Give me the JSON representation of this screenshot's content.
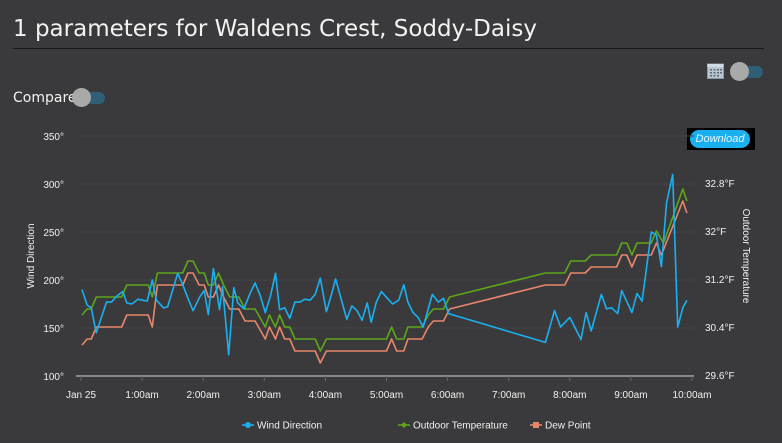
{
  "header": {
    "title": "1 parameters for Waldens Crest, Soddy-Daisy"
  },
  "controls": {
    "compare_label": "Compare",
    "compare_on": false,
    "date_toggle_on": false,
    "calendar_icon": "calendar-icon",
    "download_label": "Download"
  },
  "colors": {
    "wind": "#1ab0f0",
    "temp": "#5ea51a",
    "dew": "#e8866a",
    "background": "#3a3a3c"
  },
  "chart_data": {
    "type": "line",
    "title": "",
    "xlabel": "",
    "ylabel_left": "Wind Direction",
    "ylabel_right": "Outdoor Temperature",
    "x_ticks": [
      "Jan 25",
      "1:00am",
      "2:00am",
      "3:00am",
      "4:00am",
      "5:00am",
      "6:00am",
      "7:00am",
      "8:00am",
      "9:00am",
      "10:00am"
    ],
    "xlim": [
      "0:00",
      "10:00"
    ],
    "y_left_ticks": [
      "100°",
      "150°",
      "200°",
      "250°",
      "300°",
      "350°"
    ],
    "ylim_left": [
      100,
      350
    ],
    "y_right_ticks": [
      "29.6°F",
      "30.4°F",
      "31.2°F",
      "32°F",
      "32.8°F"
    ],
    "ylim_right": [
      29.6,
      32.8
    ],
    "grid": true,
    "legend": "bottom",
    "series": [
      {
        "name": "Wind Direction",
        "axis": "left",
        "points": [
          [
            "0:01",
            190
          ],
          [
            "0:06",
            174
          ],
          [
            "0:10",
            171
          ],
          [
            "0:15",
            145
          ],
          [
            "0:25",
            177
          ],
          [
            "0:30",
            177
          ],
          [
            "0:35",
            183
          ],
          [
            "0:41",
            188
          ],
          [
            "0:45",
            176
          ],
          [
            "0:50",
            175
          ],
          [
            "0:56",
            180
          ],
          [
            "1:05",
            178
          ],
          [
            "1:10",
            200
          ],
          [
            "1:14",
            179
          ],
          [
            "1:21",
            171
          ],
          [
            "1:25",
            172
          ],
          [
            "1:35",
            207
          ],
          [
            "1:40",
            195
          ],
          [
            "1:45",
            181
          ],
          [
            "1:50",
            168
          ],
          [
            "1:57",
            183
          ],
          [
            "2:01",
            189
          ],
          [
            "2:05",
            164
          ],
          [
            "2:10",
            212
          ],
          [
            "2:16",
            169
          ],
          [
            "2:19",
            193
          ],
          [
            "2:25",
            122
          ],
          [
            "2:30",
            192
          ],
          [
            "2:34",
            176
          ],
          [
            "2:40",
            170
          ],
          [
            "2:46",
            186
          ],
          [
            "2:51",
            197
          ],
          [
            "2:56",
            184
          ],
          [
            "3:01",
            166
          ],
          [
            "3:06",
            183
          ],
          [
            "3:11",
            207
          ],
          [
            "3:15",
            169
          ],
          [
            "3:20",
            171
          ],
          [
            "3:25",
            160
          ],
          [
            "3:30",
            177
          ],
          [
            "3:35",
            177
          ],
          [
            "3:40",
            180
          ],
          [
            "3:45",
            179
          ],
          [
            "3:50",
            185
          ],
          [
            "3:55",
            202
          ],
          [
            "4:01",
            167
          ],
          [
            "4:06",
            185
          ],
          [
            "4:10",
            201
          ],
          [
            "4:21",
            159
          ],
          [
            "4:26",
            173
          ],
          [
            "4:31",
            168
          ],
          [
            "4:36",
            158
          ],
          [
            "4:41",
            176
          ],
          [
            "4:45",
            156
          ],
          [
            "4:50",
            177
          ],
          [
            "4:55",
            188
          ],
          [
            "5:00",
            182
          ],
          [
            "5:06",
            175
          ],
          [
            "5:12",
            179
          ],
          [
            "5:17",
            195
          ],
          [
            "5:21",
            177
          ],
          [
            "5:26",
            166
          ],
          [
            "5:31",
            161
          ],
          [
            "5:36",
            151
          ],
          [
            "5:45",
            185
          ],
          [
            "5:51",
            177
          ],
          [
            "5:56",
            181
          ],
          [
            "6:01",
            165
          ],
          [
            "7:36",
            135
          ],
          [
            "7:45",
            168
          ],
          [
            "7:51",
            151
          ],
          [
            "8:00",
            161
          ],
          [
            "8:11",
            138
          ],
          [
            "8:16",
            166
          ],
          [
            "8:21",
            147
          ],
          [
            "8:31",
            185
          ],
          [
            "8:36",
            170
          ],
          [
            "8:41",
            171
          ],
          [
            "8:47",
            165
          ],
          [
            "8:51",
            189
          ],
          [
            "9:01",
            166
          ],
          [
            "9:06",
            186
          ],
          [
            "9:11",
            178
          ],
          [
            "9:20",
            250
          ],
          [
            "9:25",
            247
          ],
          [
            "9:30",
            214
          ],
          [
            "9:35",
            280
          ],
          [
            "9:41",
            310
          ],
          [
            "9:46",
            151
          ],
          [
            "9:51",
            171
          ],
          [
            "9:55",
            179
          ]
        ]
      },
      {
        "name": "Outdoor Temperature",
        "axis": "right",
        "points": [
          [
            "0:01",
            30.6
          ],
          [
            "0:06",
            30.7
          ],
          [
            "0:10",
            30.7
          ],
          [
            "0:15",
            30.9
          ],
          [
            "0:40",
            30.9
          ],
          [
            "0:45",
            31.1
          ],
          [
            "1:06",
            31.1
          ],
          [
            "1:10",
            30.9
          ],
          [
            "1:15",
            31.3
          ],
          [
            "1:40",
            31.3
          ],
          [
            "1:45",
            31.5
          ],
          [
            "1:50",
            31.5
          ],
          [
            "1:56",
            31.3
          ],
          [
            "2:01",
            31.3
          ],
          [
            "2:05",
            31.1
          ],
          [
            "2:10",
            31.1
          ],
          [
            "2:15",
            31.3
          ],
          [
            "2:20",
            31.1
          ],
          [
            "2:26",
            30.9
          ],
          [
            "2:35",
            30.9
          ],
          [
            "2:41",
            30.7
          ],
          [
            "2:51",
            30.7
          ],
          [
            "3:01",
            30.4
          ],
          [
            "3:05",
            30.6
          ],
          [
            "3:11",
            30.4
          ],
          [
            "3:15",
            30.6
          ],
          [
            "3:20",
            30.4
          ],
          [
            "3:25",
            30.4
          ],
          [
            "3:30",
            30.2
          ],
          [
            "3:50",
            30.2
          ],
          [
            "3:55",
            30.0
          ],
          [
            "4:01",
            30.2
          ],
          [
            "5:00",
            30.2
          ],
          [
            "5:05",
            30.4
          ],
          [
            "5:10",
            30.2
          ],
          [
            "5:17",
            30.2
          ],
          [
            "5:21",
            30.4
          ],
          [
            "5:35",
            30.4
          ],
          [
            "5:41",
            30.6
          ],
          [
            "5:46",
            30.7
          ],
          [
            "5:56",
            30.7
          ],
          [
            "6:02",
            30.9
          ],
          [
            "7:36",
            31.3
          ],
          [
            "7:55",
            31.3
          ],
          [
            "8:01",
            31.5
          ],
          [
            "8:15",
            31.5
          ],
          [
            "8:21",
            31.6
          ],
          [
            "8:46",
            31.6
          ],
          [
            "8:51",
            31.8
          ],
          [
            "8:56",
            31.8
          ],
          [
            "9:01",
            31.6
          ],
          [
            "9:06",
            31.8
          ],
          [
            "9:20",
            31.8
          ],
          [
            "9:25",
            32.0
          ],
          [
            "9:32",
            31.8
          ],
          [
            "9:51",
            32.7
          ],
          [
            "9:55",
            32.5
          ]
        ]
      },
      {
        "name": "Dew Point",
        "axis": "right",
        "points": [
          [
            "0:01",
            30.1
          ],
          [
            "0:06",
            30.2
          ],
          [
            "0:10",
            30.2
          ],
          [
            "0:15",
            30.4
          ],
          [
            "0:40",
            30.4
          ],
          [
            "0:45",
            30.6
          ],
          [
            "1:06",
            30.6
          ],
          [
            "1:10",
            30.4
          ],
          [
            "1:15",
            31.1
          ],
          [
            "1:40",
            31.1
          ],
          [
            "1:45",
            31.3
          ],
          [
            "1:50",
            31.3
          ],
          [
            "1:56",
            31.1
          ],
          [
            "2:01",
            31.1
          ],
          [
            "2:05",
            30.9
          ],
          [
            "2:10",
            30.9
          ],
          [
            "2:15",
            31.1
          ],
          [
            "2:20",
            30.9
          ],
          [
            "2:26",
            30.7
          ],
          [
            "2:35",
            30.7
          ],
          [
            "2:41",
            30.5
          ],
          [
            "2:51",
            30.5
          ],
          [
            "3:01",
            30.2
          ],
          [
            "3:05",
            30.4
          ],
          [
            "3:11",
            30.2
          ],
          [
            "3:15",
            30.4
          ],
          [
            "3:20",
            30.2
          ],
          [
            "3:25",
            30.2
          ],
          [
            "3:30",
            30.0
          ],
          [
            "3:50",
            30.0
          ],
          [
            "3:55",
            29.8
          ],
          [
            "4:01",
            30.0
          ],
          [
            "5:00",
            30.0
          ],
          [
            "5:05",
            30.2
          ],
          [
            "5:10",
            30.0
          ],
          [
            "5:17",
            30.0
          ],
          [
            "5:21",
            30.2
          ],
          [
            "5:35",
            30.2
          ],
          [
            "5:41",
            30.4
          ],
          [
            "5:46",
            30.5
          ],
          [
            "5:56",
            30.5
          ],
          [
            "6:02",
            30.7
          ],
          [
            "7:36",
            31.1
          ],
          [
            "7:55",
            31.1
          ],
          [
            "8:01",
            31.3
          ],
          [
            "8:15",
            31.3
          ],
          [
            "8:21",
            31.4
          ],
          [
            "8:46",
            31.4
          ],
          [
            "8:51",
            31.6
          ],
          [
            "8:56",
            31.6
          ],
          [
            "9:01",
            31.4
          ],
          [
            "9:06",
            31.6
          ],
          [
            "9:20",
            31.6
          ],
          [
            "9:25",
            31.8
          ],
          [
            "9:30",
            31.6
          ],
          [
            "9:51",
            32.5
          ],
          [
            "9:55",
            32.3
          ]
        ]
      }
    ]
  }
}
